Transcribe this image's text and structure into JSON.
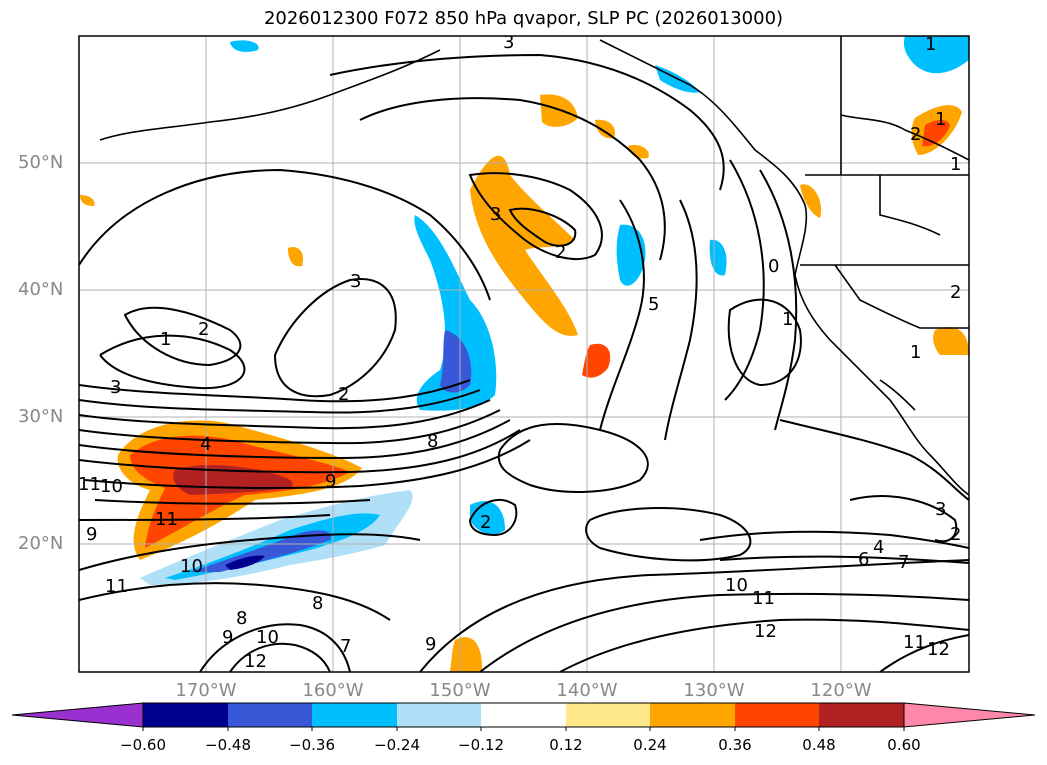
{
  "title": "2026012300 F072 850 hPa qvapor, SLP PC (2026013000)",
  "lat_labels": [
    "50°N",
    "40°N",
    "30°N",
    "20°N"
  ],
  "lon_labels": [
    "170°W",
    "160°W",
    "150°W",
    "140°W",
    "130°W",
    "120°W"
  ],
  "colorbar": {
    "ticks": [
      "−0.60",
      "−0.48",
      "−0.36",
      "−0.24",
      "−0.12",
      "0.12",
      "0.24",
      "0.36",
      "0.48",
      "0.60"
    ],
    "colors": [
      "#9b30d0",
      "#000090",
      "#3858d8",
      "#00bfff",
      "#b0e0f8",
      "#ffffff",
      "#ffe88a",
      "#ffa500",
      "#ff4500",
      "#b22222",
      "#ff88aa"
    ]
  },
  "contour_labels": [
    "3",
    "1",
    "2",
    "3",
    "3",
    "2",
    "2",
    "5",
    "3",
    "1",
    "1",
    "1",
    "2",
    "1",
    "2",
    "4",
    "9",
    "8",
    "11",
    "10",
    "9",
    "11",
    "10",
    "11",
    "8",
    "8",
    "9",
    "10",
    "12",
    "7",
    "9",
    "2",
    "4",
    "6",
    "7",
    "10",
    "11",
    "12",
    "11",
    "12",
    "3",
    "2",
    "1",
    "0"
  ],
  "map": {
    "projection": "plate carree",
    "lon_range": [
      "178°W",
      "108°W"
    ],
    "lat_range": [
      "10°N",
      "60°N"
    ],
    "grid": true,
    "field_shaded": "850 hPa qvapor",
    "field_contoured": "SLP PC"
  }
}
